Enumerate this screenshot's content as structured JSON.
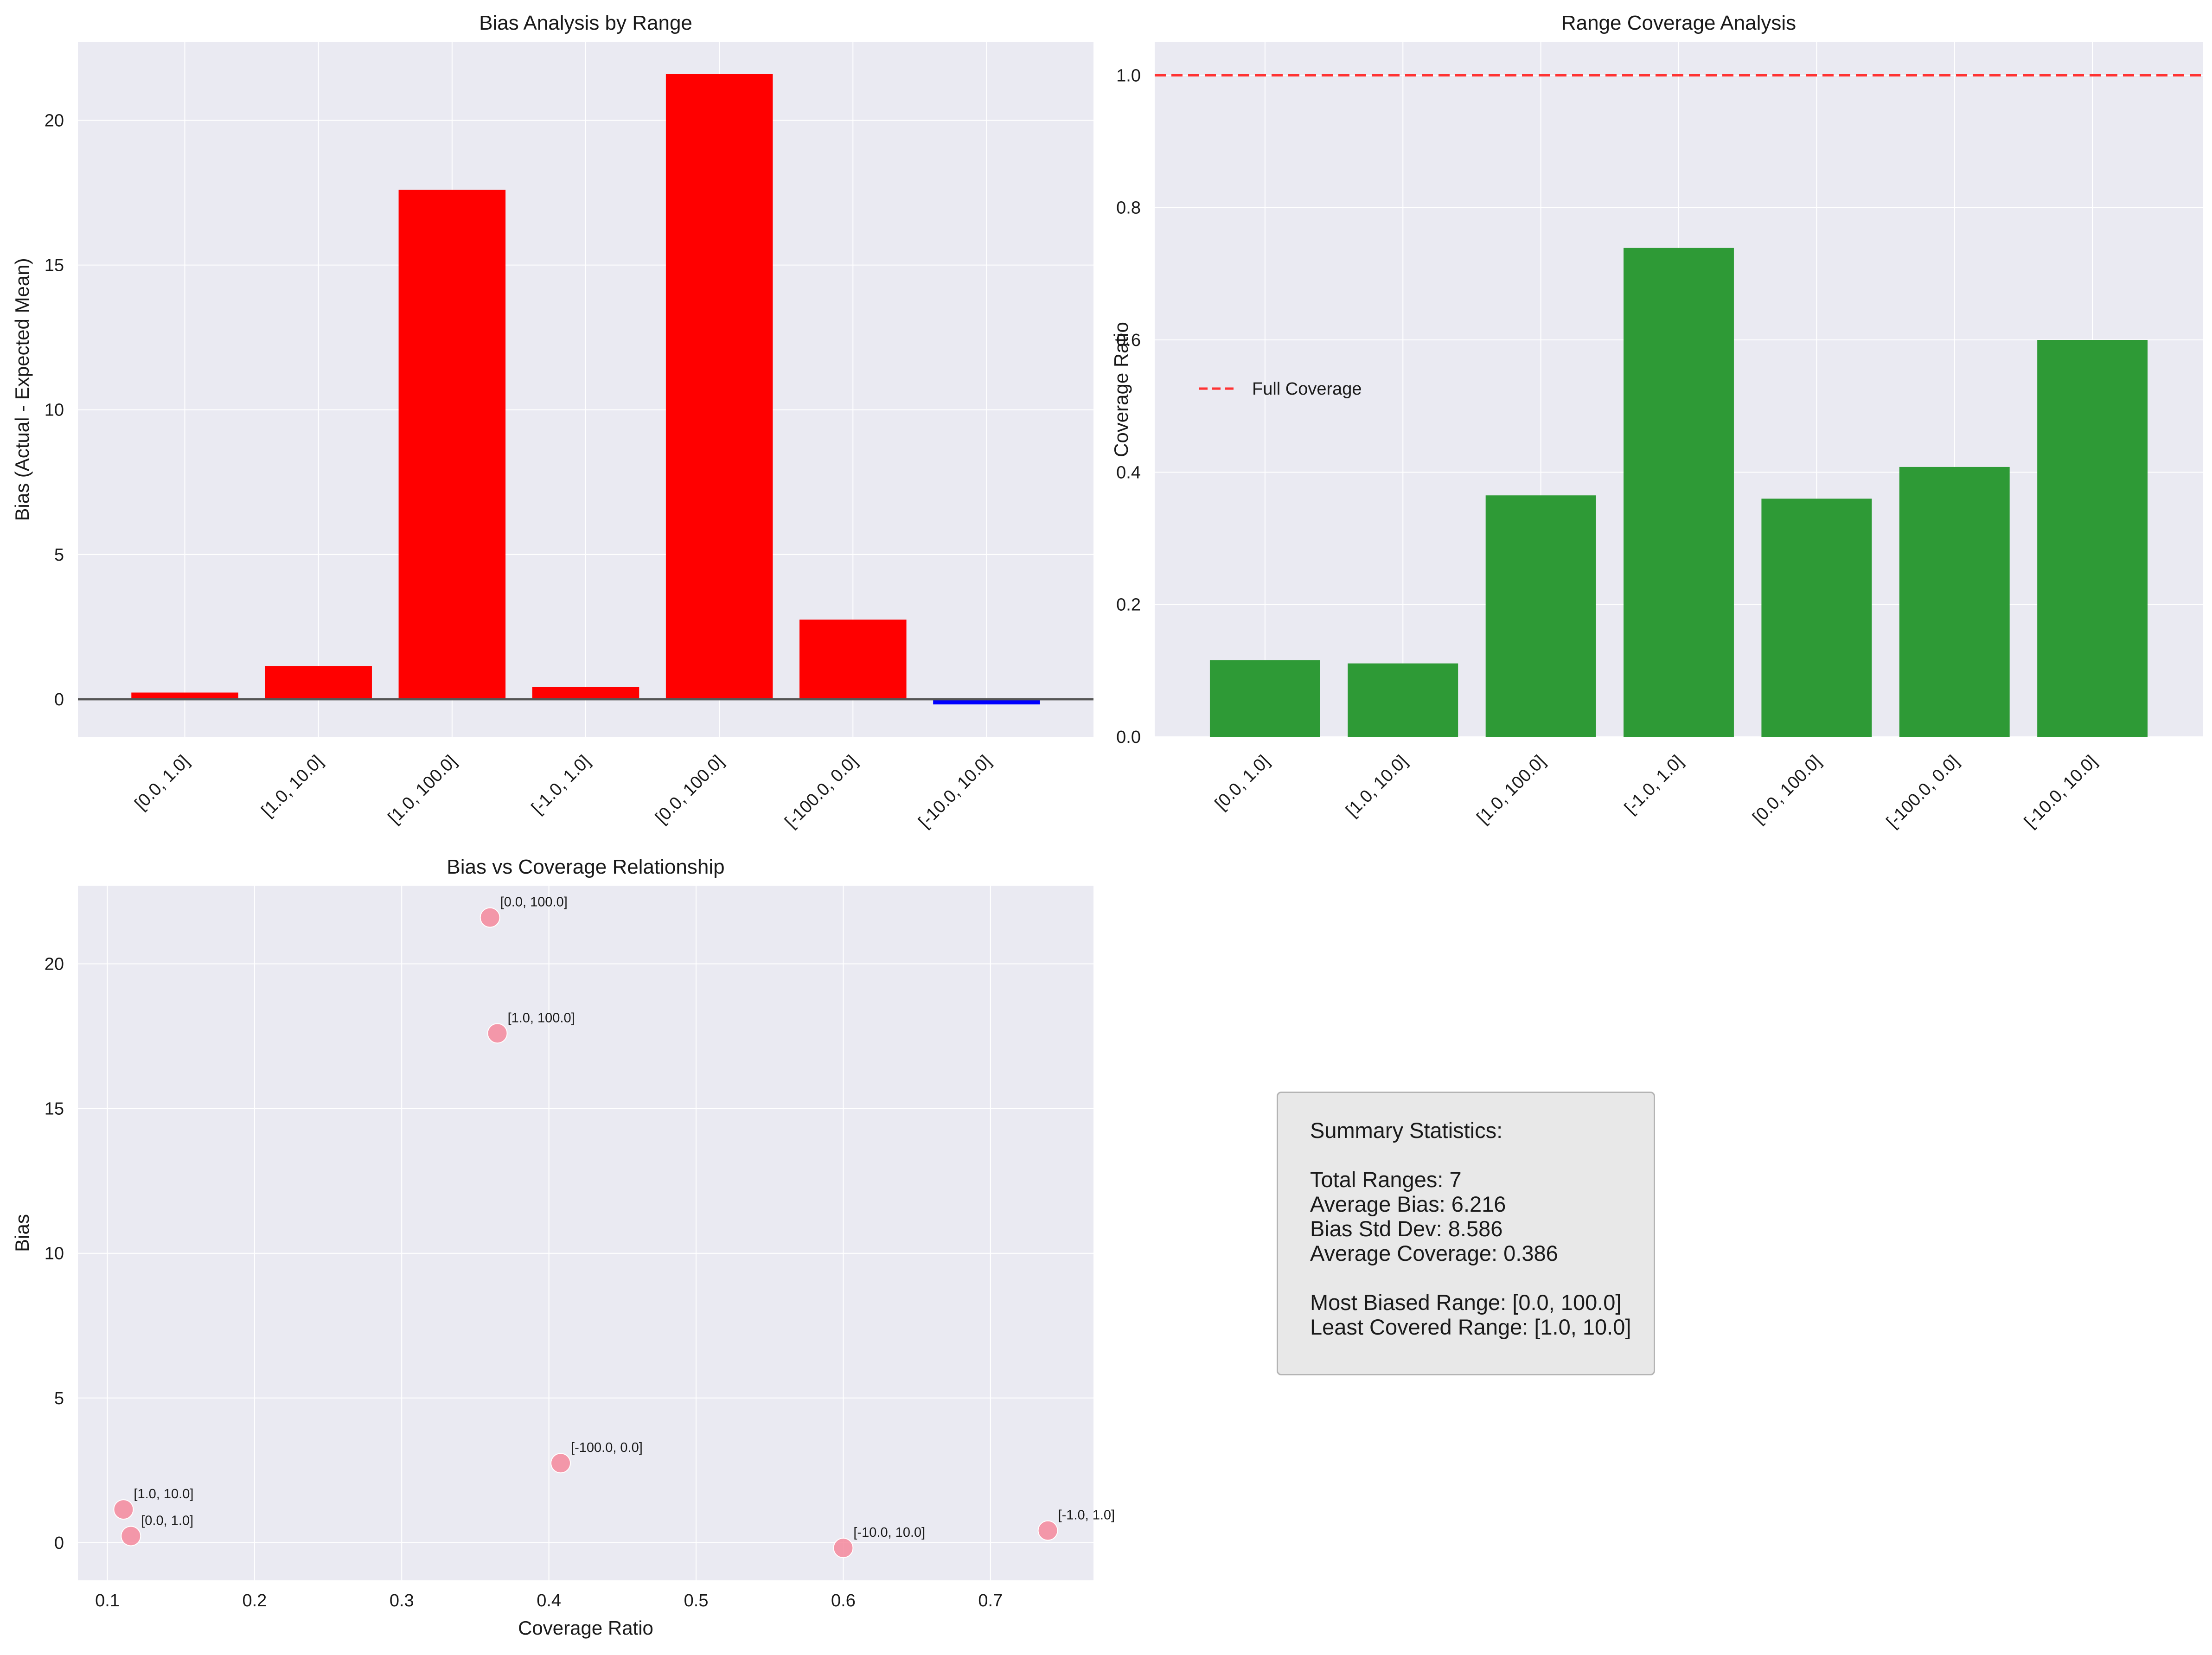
{
  "chart_data": [
    {
      "type": "bar",
      "title": "Bias Analysis by Range",
      "xlabel": "",
      "ylabel": "Bias (Actual - Expected Mean)",
      "categories": [
        "[0.0, 1.0]",
        "[1.0, 10.0]",
        "[1.0, 100.0]",
        "[-1.0, 1.0]",
        "[0.0, 100.0]",
        "[-100.0, 0.0]",
        "[-10.0, 10.0]"
      ],
      "values": [
        0.23,
        1.15,
        17.6,
        0.42,
        21.6,
        2.75,
        -0.18
      ],
      "colors": [
        "#ff0000",
        "#ff0000",
        "#ff0000",
        "#ff0000",
        "#ff0000",
        "#ff0000",
        "#0000ff"
      ],
      "ylim": [
        -1.3,
        22.7
      ],
      "yticks": [
        0,
        5,
        10,
        15,
        20
      ],
      "zero_line": true,
      "grid": true
    },
    {
      "type": "bar",
      "title": "Range Coverage Analysis",
      "xlabel": "",
      "ylabel": "Coverage Ratio",
      "categories": [
        "[0.0, 1.0]",
        "[1.0, 10.0]",
        "[1.0, 100.0]",
        "[-1.0, 1.0]",
        "[0.0, 100.0]",
        "[-100.0, 0.0]",
        "[-10.0, 10.0]"
      ],
      "values": [
        0.116,
        0.111,
        0.365,
        0.739,
        0.36,
        0.408,
        0.6
      ],
      "color": "#2e9a36",
      "ylim": [
        0,
        1.05
      ],
      "yticks": [
        "0.0",
        "0.2",
        "0.4",
        "0.6",
        "0.8",
        "1.0"
      ],
      "reference_line": {
        "y": 1.0,
        "label": "Full Coverage",
        "color": "#ff3333"
      },
      "legend": "center-left",
      "grid": true
    },
    {
      "type": "scatter",
      "title": "Bias vs Coverage Relationship",
      "xlabel": "Coverage Ratio",
      "ylabel": "Bias",
      "points": [
        {
          "label": "[0.0, 1.0]",
          "x": 0.116,
          "y": 0.23
        },
        {
          "label": "[1.0, 10.0]",
          "x": 0.111,
          "y": 1.15
        },
        {
          "label": "[1.0, 100.0]",
          "x": 0.365,
          "y": 17.6
        },
        {
          "label": "[-1.0, 1.0]",
          "x": 0.739,
          "y": 0.42
        },
        {
          "label": "[0.0, 100.0]",
          "x": 0.36,
          "y": 21.6
        },
        {
          "label": "[-100.0, 0.0]",
          "x": 0.408,
          "y": 2.75
        },
        {
          "label": "[-10.0, 10.0]",
          "x": 0.6,
          "y": -0.18
        }
      ],
      "color": "#f4889c",
      "xlim": [
        0.08,
        0.77
      ],
      "ylim": [
        -1.3,
        22.7
      ],
      "xticks": [
        "0.1",
        "0.2",
        "0.3",
        "0.4",
        "0.5",
        "0.6",
        "0.7"
      ],
      "yticks": [
        0,
        5,
        10,
        15,
        20
      ],
      "grid": true
    }
  ],
  "summary": {
    "heading": "Summary Statistics:",
    "total_ranges": "Total Ranges: 7",
    "average_bias": "Average Bias: 6.216",
    "bias_std_dev": "Bias Std Dev: 8.586",
    "average_coverage": "Average Coverage: 0.386",
    "most_biased": "Most Biased Range: [0.0, 100.0]",
    "least_covered": "Least Covered Range: [1.0, 10.0]"
  },
  "colors": {
    "plot_background": "#eaeaf2",
    "grid": "#ffffff",
    "zero_line": "#555555"
  }
}
